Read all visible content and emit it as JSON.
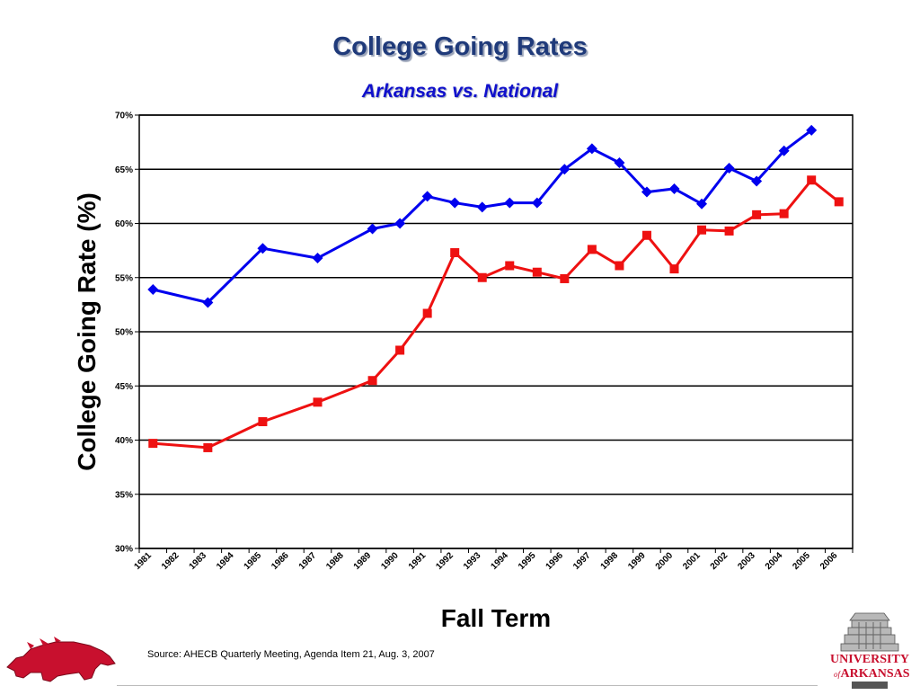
{
  "header": {
    "title": "College Going Rates",
    "subtitle": "Arkansas vs. National"
  },
  "footer": {
    "source": "Source: AHECB Quarterly Meeting, Agenda Item 21, Aug. 3, 2007",
    "logo_left": "razorback-hog-logo",
    "logo_right": {
      "name": "university-of-arkansas-logo",
      "line1": "UNIVERSITY",
      "line2_prefix": "of",
      "line2": "ARKANSAS"
    }
  },
  "colors": {
    "title": "#1f3a7a",
    "subtitle": "#1010cc",
    "national": "#0000ee",
    "arkansas": "#ee1111",
    "logo": "#c8102e"
  },
  "chart_data": {
    "type": "line",
    "xlabel": "Fall Term",
    "ylabel": "College Going Rate (%)",
    "ylim": [
      30,
      70
    ],
    "yticks": [
      "30%",
      "35%",
      "40%",
      "45%",
      "50%",
      "55%",
      "60%",
      "65%",
      "70%"
    ],
    "grid": true,
    "legend": "none",
    "categories": [
      "1981",
      "1982",
      "1983",
      "1984",
      "1985",
      "1986",
      "1987",
      "1988",
      "1989",
      "1990",
      "1991",
      "1992",
      "1993",
      "1994",
      "1995",
      "1996",
      "1997",
      "1998",
      "1999",
      "2000",
      "2001",
      "2002",
      "2003",
      "2004",
      "2005",
      "2006"
    ],
    "series": [
      {
        "key": "national",
        "marker": "diamond",
        "color": "#0000ee",
        "points": [
          [
            0.5,
            53.9
          ],
          [
            2.5,
            52.7
          ],
          [
            4.5,
            57.7
          ],
          [
            6.5,
            56.8
          ],
          [
            8.5,
            59.5
          ],
          [
            9.5,
            60.0
          ],
          [
            10.5,
            62.5
          ],
          [
            11.5,
            61.9
          ],
          [
            12.5,
            61.5
          ],
          [
            13.5,
            61.9
          ],
          [
            14.5,
            61.9
          ],
          [
            15.5,
            65.0
          ],
          [
            16.5,
            66.9
          ],
          [
            17.5,
            65.6
          ],
          [
            18.5,
            62.9
          ],
          [
            19.5,
            63.2
          ],
          [
            20.5,
            61.8
          ],
          [
            21.5,
            65.1
          ],
          [
            22.5,
            63.9
          ],
          [
            23.5,
            66.7
          ],
          [
            24.5,
            68.6
          ]
        ]
      },
      {
        "key": "arkansas",
        "marker": "square",
        "color": "#ee1111",
        "points": [
          [
            0.5,
            39.7
          ],
          [
            2.5,
            39.3
          ],
          [
            4.5,
            41.7
          ],
          [
            6.5,
            43.5
          ],
          [
            8.5,
            45.5
          ],
          [
            9.5,
            48.3
          ],
          [
            10.5,
            51.7
          ],
          [
            11.5,
            57.3
          ],
          [
            12.5,
            55.0
          ],
          [
            13.5,
            56.1
          ],
          [
            14.5,
            55.5
          ],
          [
            15.5,
            54.9
          ],
          [
            16.5,
            57.6
          ],
          [
            17.5,
            56.1
          ],
          [
            18.5,
            58.9
          ],
          [
            19.5,
            55.8
          ],
          [
            20.5,
            59.4
          ],
          [
            21.5,
            59.3
          ],
          [
            22.5,
            60.8
          ],
          [
            23.5,
            60.9
          ],
          [
            24.5,
            64.0
          ],
          [
            25.5,
            62.0
          ]
        ]
      }
    ]
  }
}
